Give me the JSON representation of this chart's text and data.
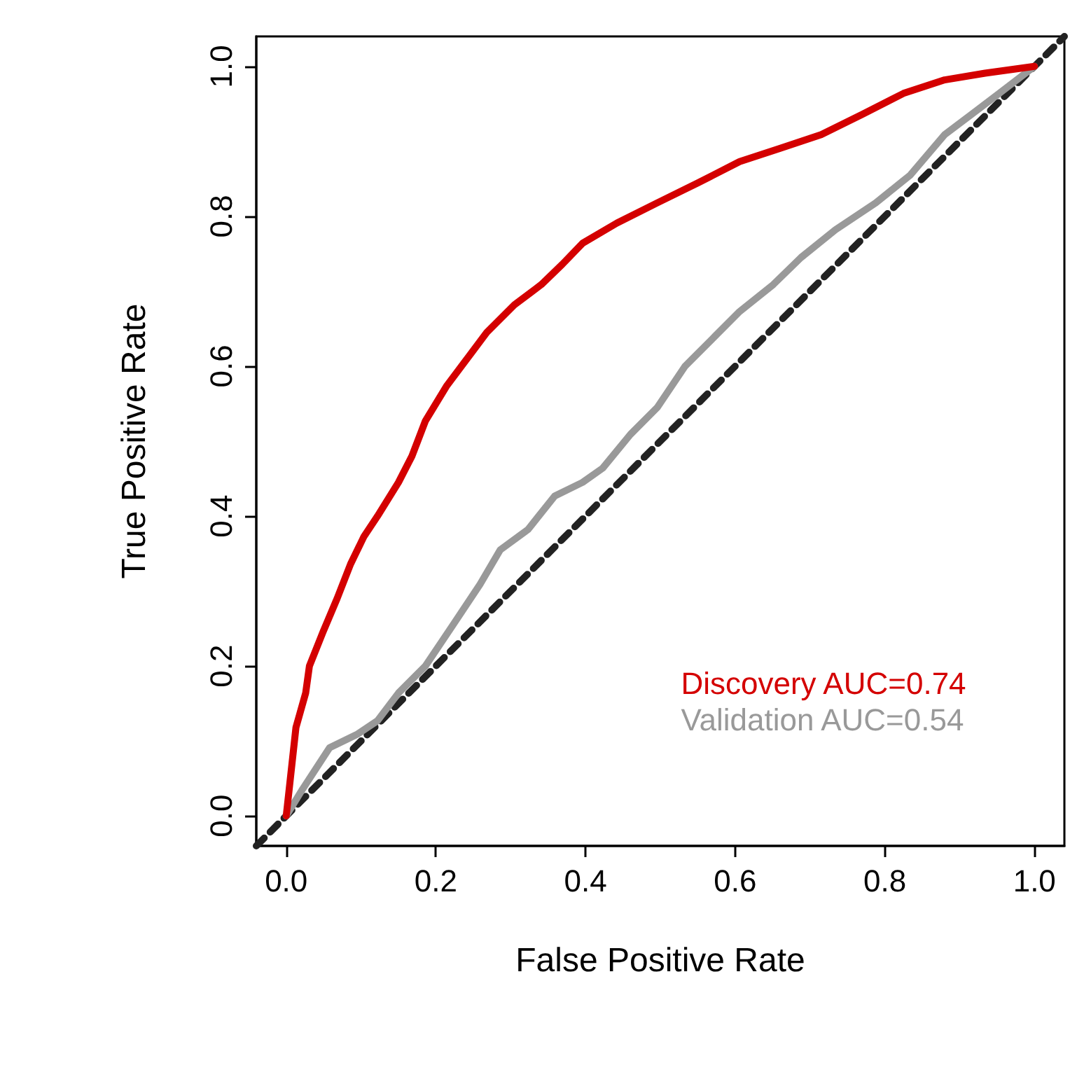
{
  "chart_data": {
    "type": "line",
    "xlabel": "False Positive Rate",
    "ylabel": "True Positive Rate",
    "xlim": [
      -0.04,
      1.04
    ],
    "ylim": [
      -0.04,
      1.04
    ],
    "xticks": [
      {
        "value": 0,
        "label": "0.0"
      },
      0.2,
      0.4,
      0.6,
      0.8,
      {
        "value": 1,
        "label": "1.0"
      }
    ],
    "yticks": [
      {
        "value": 0,
        "label": "0.0"
      },
      0.2,
      0.4,
      0.6,
      0.8,
      {
        "value": 1,
        "label": "1.0"
      }
    ],
    "grid": false,
    "legend": "bottom right",
    "marker": "none",
    "series": [
      {
        "name": "Discovery AUC=0.74",
        "color": "#d40000",
        "x": [
          0,
          0.004,
          0.013,
          0.026,
          0.031,
          0.049,
          0.068,
          0.086,
          0.104,
          0.122,
          0.15,
          0.168,
          0.186,
          0.214,
          0.241,
          0.268,
          0.305,
          0.341,
          0.369,
          0.396,
          0.442,
          0.496,
          0.551,
          0.606,
          0.661,
          0.715,
          0.77,
          0.825,
          0.88,
          0.934,
          1
        ],
        "values": [
          0,
          0.036,
          0.118,
          0.164,
          0.2,
          0.245,
          0.29,
          0.336,
          0.373,
          0.4,
          0.445,
          0.48,
          0.527,
          0.573,
          0.609,
          0.645,
          0.682,
          0.709,
          0.736,
          0.764,
          0.791,
          0.818,
          0.845,
          0.873,
          0.891,
          0.909,
          0.936,
          0.964,
          0.982,
          0.991,
          1
        ]
      },
      {
        "name": "Validation AUC=0.54",
        "color": "#999999",
        "x": [
          0,
          0.022,
          0.058,
          0.095,
          0.122,
          0.15,
          0.186,
          0.223,
          0.259,
          0.286,
          0.323,
          0.359,
          0.396,
          0.423,
          0.46,
          0.496,
          0.533,
          0.569,
          0.606,
          0.651,
          0.688,
          0.734,
          0.788,
          0.834,
          0.88,
          0.916,
          0.953,
          1
        ],
        "values": [
          0,
          0.036,
          0.091,
          0.109,
          0.127,
          0.164,
          0.2,
          0.255,
          0.309,
          0.355,
          0.382,
          0.427,
          0.445,
          0.464,
          0.509,
          0.545,
          0.6,
          0.636,
          0.673,
          0.709,
          0.745,
          0.782,
          0.818,
          0.855,
          0.909,
          0.936,
          0.964,
          1
        ]
      },
      {
        "color": "#222222",
        "line_style": "dashed",
        "x": [
          -0.04,
          1.04
        ],
        "values": [
          -0.04,
          1.04
        ]
      }
    ]
  }
}
